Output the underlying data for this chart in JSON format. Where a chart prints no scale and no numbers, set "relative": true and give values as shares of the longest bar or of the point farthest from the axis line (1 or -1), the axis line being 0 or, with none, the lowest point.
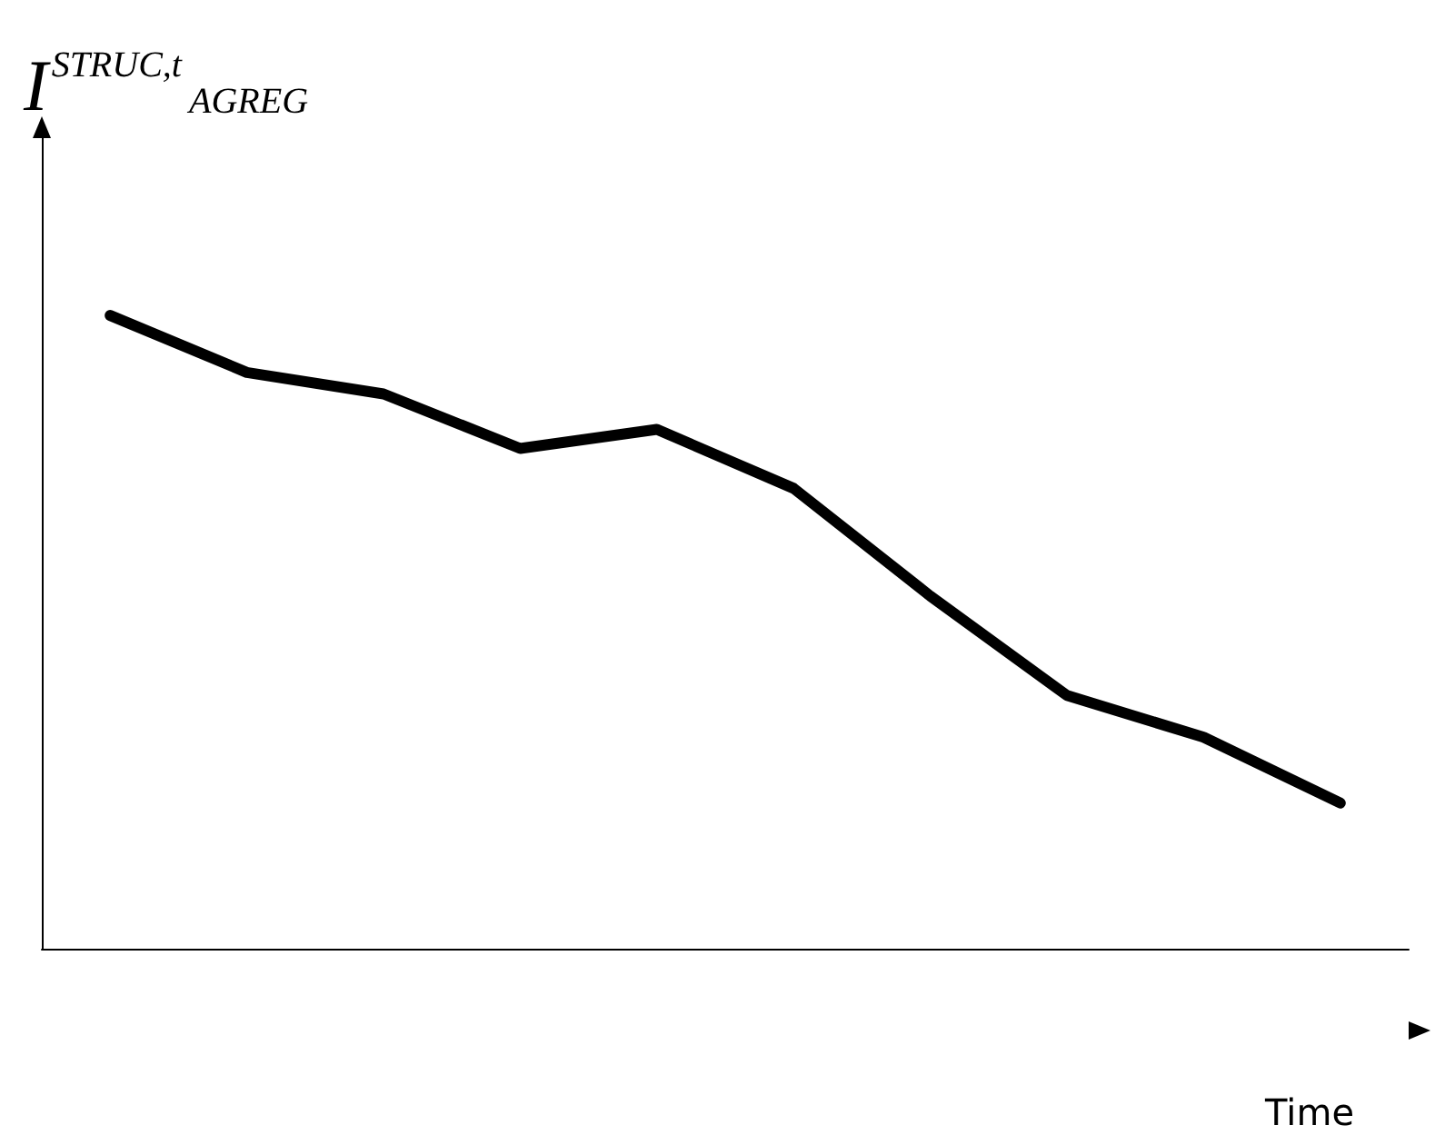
{
  "chart_data": {
    "type": "line",
    "ylabel": "I$^{STRUC,t}$$_{AGREG}$",
    "xlabel": "Time",
    "relative": true,
    "grid": false,
    "marker": "none",
    "line_style": "solid",
    "categories": [
      null,
      null,
      null,
      null,
      null,
      null,
      null,
      null,
      null,
      null
    ],
    "series": [
      {
        "color": "#000000",
        "values": [
          1,
          0.91,
          0.876,
          0.79,
          0.82,
          0.727,
          0.557,
          0.4,
          0.334,
          0.23
        ]
      }
    ]
  }
}
